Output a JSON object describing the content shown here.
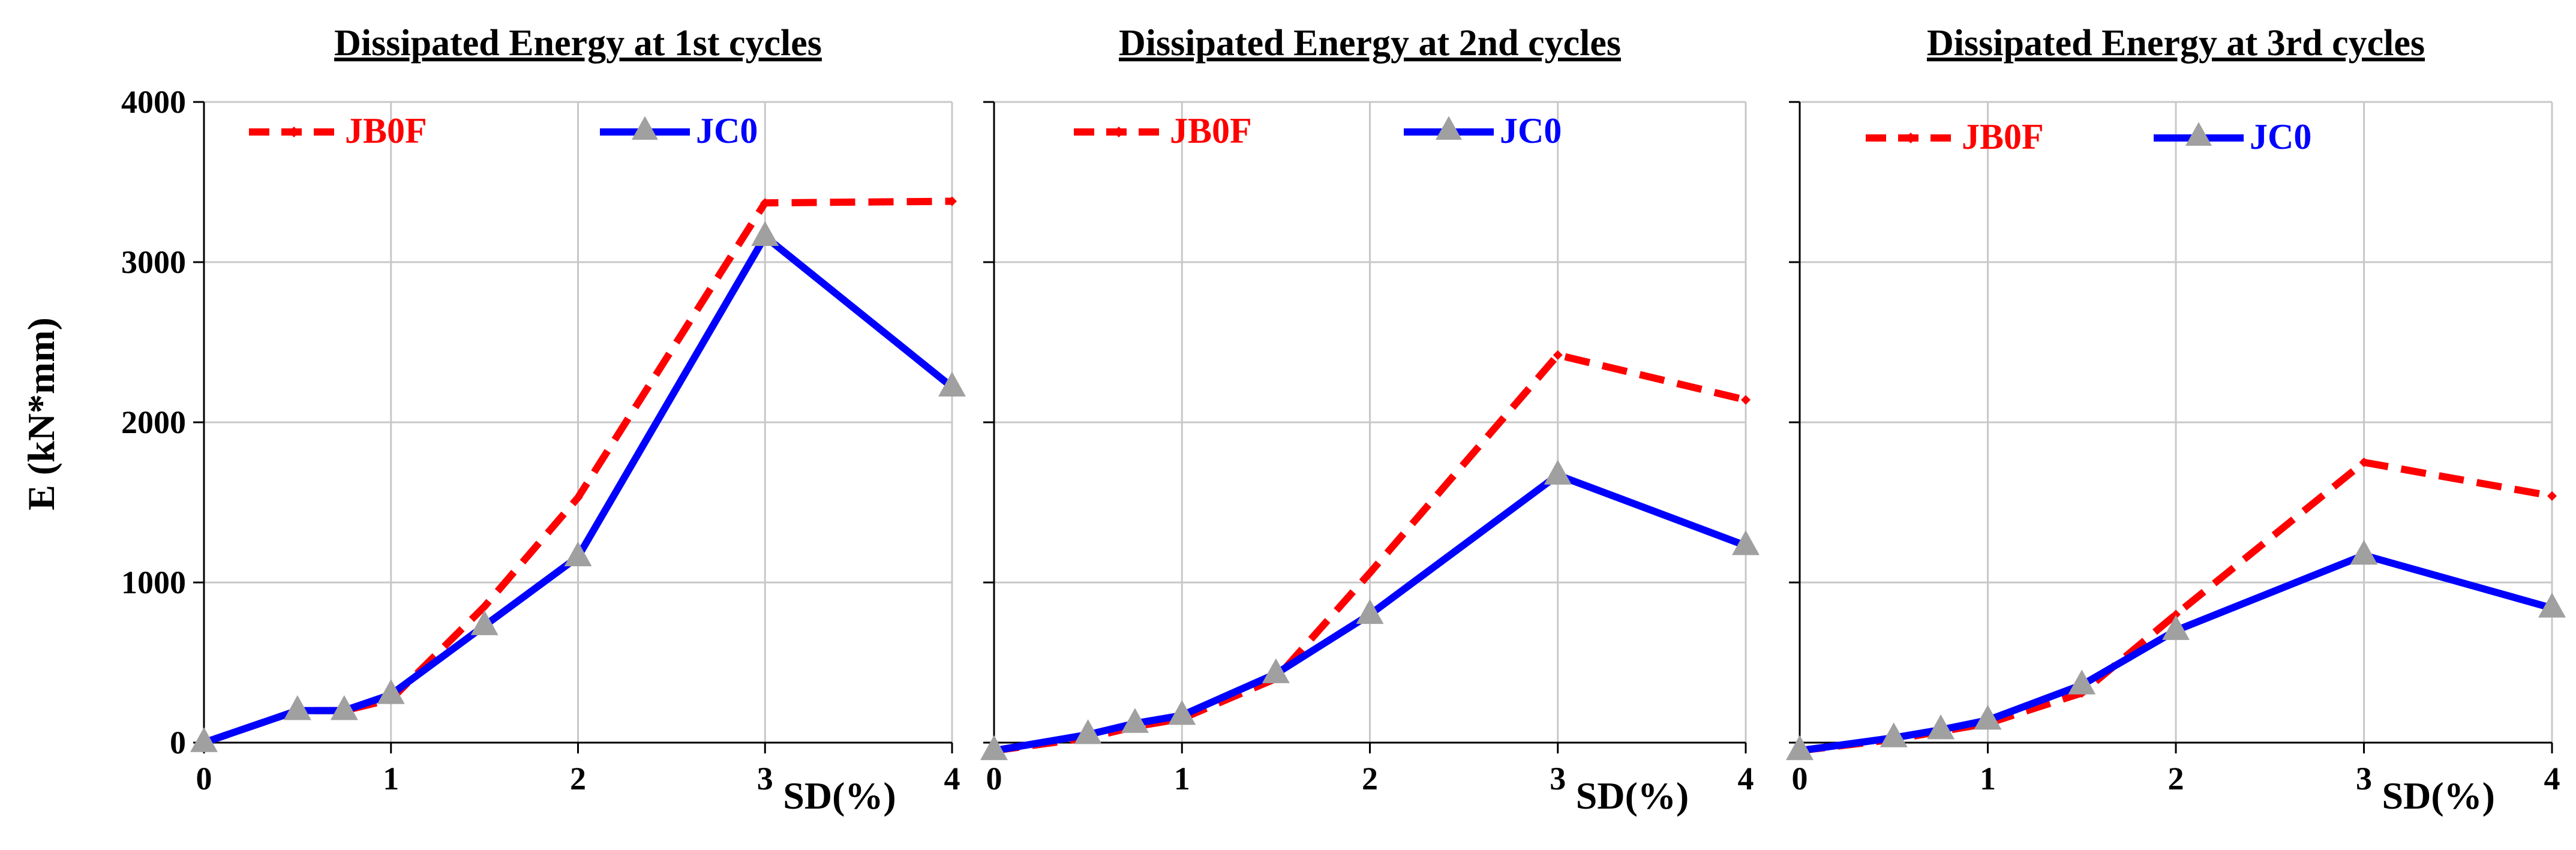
{
  "shared": {
    "ylabel": "E (kN*mm)",
    "xlabel": "SD(%)",
    "y_ticks": [
      "0",
      "1000",
      "2000",
      "3000",
      "4000"
    ],
    "x_ticks": [
      "0",
      "1",
      "2",
      "3",
      "4"
    ]
  },
  "colors": {
    "JB0F": "#ff0000",
    "JC0": "#0000ff",
    "marker": "#a0a0a0"
  },
  "chart_data": [
    {
      "type": "line",
      "title": "Dissipated Energy at 1st cycles",
      "xlabel": "SD(%)",
      "ylabel": "E (kN*mm)",
      "xlim": [
        0,
        4
      ],
      "ylim": [
        0,
        4000
      ],
      "grid": true,
      "legend": "top",
      "series": [
        {
          "name": "JB0F",
          "style": "dashed",
          "x": [
            0,
            0.5,
            0.75,
            1,
            1.5,
            2,
            3,
            4
          ],
          "y": [
            0,
            200,
            200,
            270,
            850,
            1530,
            3370,
            3380
          ]
        },
        {
          "name": "JC0",
          "style": "solid",
          "x": [
            0,
            0.5,
            0.75,
            1,
            1.5,
            2,
            3,
            4
          ],
          "y": [
            0,
            200,
            200,
            300,
            730,
            1160,
            3160,
            2220
          ]
        }
      ]
    },
    {
      "type": "line",
      "title": "Dissipated Energy at 2nd cycles",
      "xlabel": "SD(%)",
      "ylabel": "",
      "xlim": [
        0,
        4
      ],
      "ylim": [
        0,
        4000
      ],
      "grid": true,
      "legend": "top",
      "series": [
        {
          "name": "JB0F",
          "style": "dashed",
          "x": [
            0,
            0.5,
            0.75,
            1,
            1.5,
            2,
            3,
            4
          ],
          "y": [
            -50,
            30,
            100,
            150,
            400,
            1060,
            2420,
            2140
          ]
        },
        {
          "name": "JC0",
          "style": "solid",
          "x": [
            0,
            0.5,
            0.75,
            1,
            1.5,
            2,
            3,
            4
          ],
          "y": [
            -50,
            50,
            120,
            170,
            430,
            800,
            1670,
            1230
          ]
        }
      ]
    },
    {
      "type": "line",
      "title": "Dissipated Energy at 3rd cycles",
      "xlabel": "SD(%)",
      "ylabel": "",
      "xlim": [
        0,
        4
      ],
      "ylim": [
        0,
        4000
      ],
      "grid": true,
      "legend": "top",
      "series": [
        {
          "name": "JB0F",
          "style": "dashed",
          "x": [
            0,
            0.5,
            0.75,
            1,
            1.5,
            2,
            3,
            4
          ],
          "y": [
            -50,
            20,
            70,
            120,
            310,
            800,
            1750,
            1540
          ]
        },
        {
          "name": "JC0",
          "style": "solid",
          "x": [
            0,
            0.5,
            0.75,
            1,
            1.5,
            2,
            3,
            4
          ],
          "y": [
            -50,
            30,
            80,
            140,
            360,
            700,
            1170,
            840
          ]
        }
      ]
    }
  ]
}
